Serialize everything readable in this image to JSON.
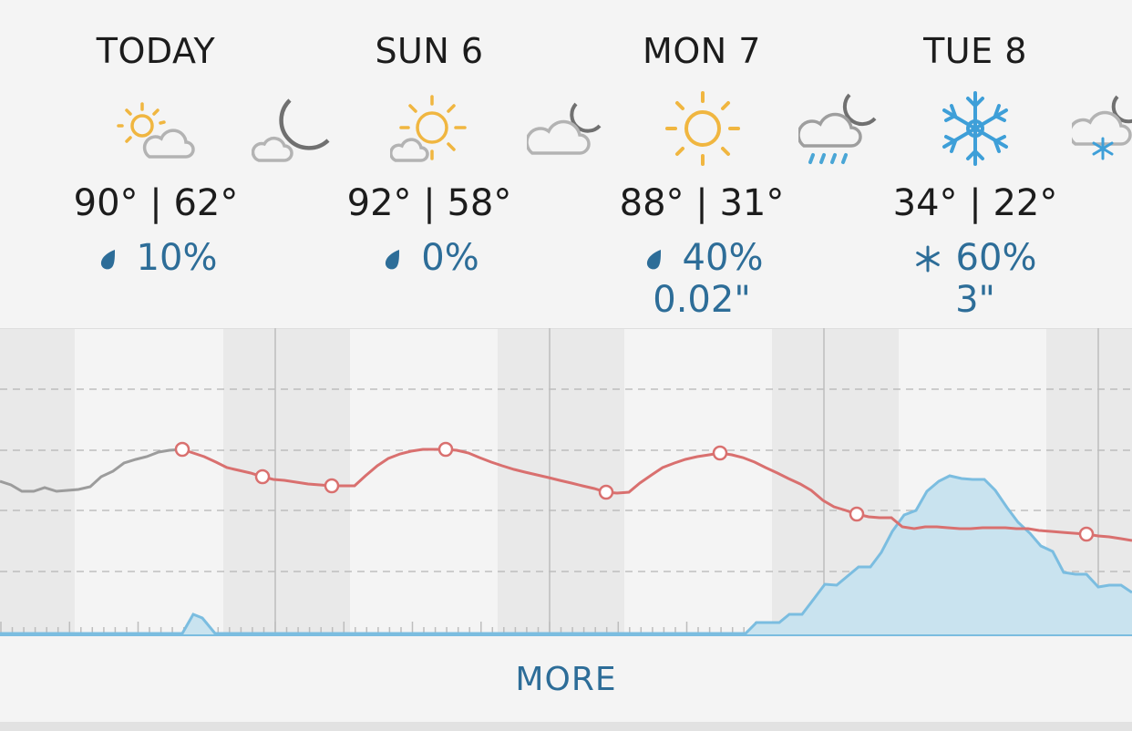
{
  "days": [
    {
      "title": "TODAY",
      "day_icon": "partly-cloudy-day-icon",
      "night_icon": "partly-cloudy-night-icon",
      "temps": "90° | 62°",
      "precip_icon": "raindrop-icon",
      "precip": "10%",
      "amount": ""
    },
    {
      "title": "SUN 6",
      "day_icon": "partly-sunny-icon",
      "night_icon": "cloudy-night-icon",
      "temps": "92° | 58°",
      "precip_icon": "raindrop-icon",
      "precip": "0%",
      "amount": ""
    },
    {
      "title": "MON 7",
      "day_icon": "sunny-icon",
      "night_icon": "rain-night-icon",
      "temps": "88° | 31°",
      "precip_icon": "raindrop-icon",
      "precip": "40%",
      "amount": "0.02\""
    },
    {
      "title": "TUE 8",
      "day_icon": "snowflake-icon",
      "night_icon": "snow-night-icon",
      "temps": "34° | 22°",
      "precip_icon": "snowflake-icon",
      "precip": "60%",
      "amount": "3\""
    }
  ],
  "more_label": "MORE",
  "colors": {
    "temperature_line": "#d9706f",
    "past_temperature_line": "#9c9c9c",
    "precip_fill": "#c9e3ef",
    "precip_line": "#7bbde0",
    "precip_text": "#2d6d98",
    "sun": "#f0b640"
  }
}
